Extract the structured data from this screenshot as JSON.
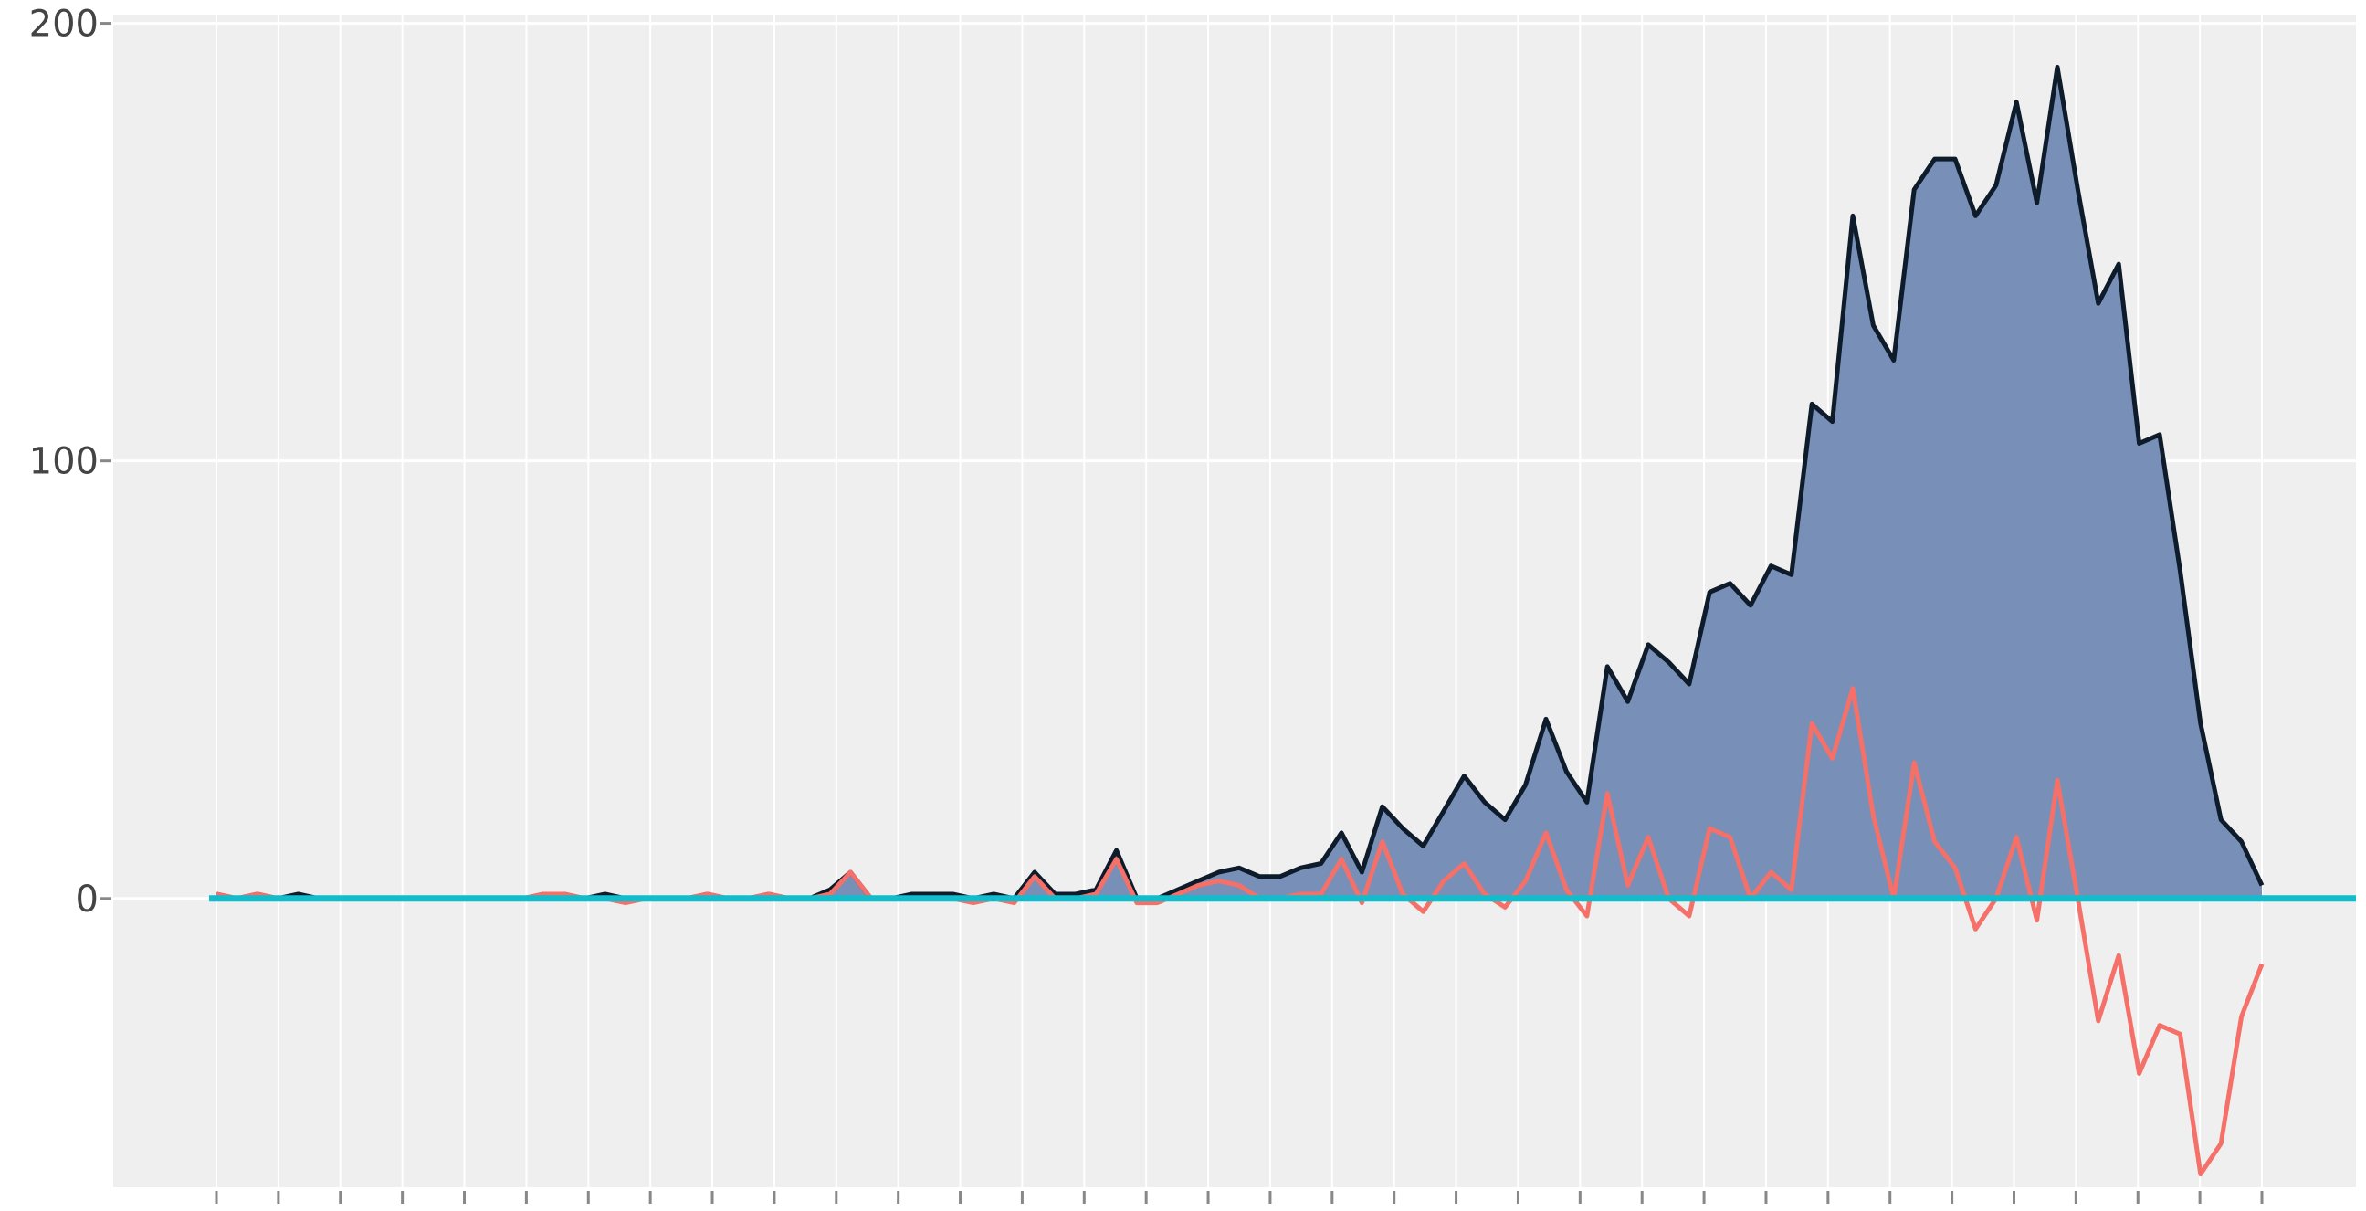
{
  "chart_data": {
    "type": "area",
    "title": "",
    "xlabel": "",
    "ylabel": "",
    "ylim": [
      -66,
      202
    ],
    "yticks": [
      0,
      100,
      200
    ],
    "x_tick_count": 34,
    "grid": true,
    "legend": "none",
    "colors": {
      "background": "#efefef",
      "grid": "#ffffff",
      "area_fill": "#7890b7",
      "area_line": "#0d1b2a",
      "line": "#f47068",
      "zero_line": "#12bccb",
      "tick_text": "#444444",
      "tick_mark": "#888888"
    },
    "series": [
      {
        "values": [
          1,
          0,
          1,
          0,
          1,
          0,
          0,
          0,
          0,
          0,
          0,
          0,
          0,
          0,
          0,
          0,
          1,
          1,
          0,
          1,
          0,
          0,
          0,
          0,
          1,
          0,
          0,
          1,
          0,
          0,
          2,
          6,
          0,
          0,
          1,
          1,
          1,
          0,
          1,
          0,
          6,
          1,
          1,
          2,
          11,
          0,
          0,
          2,
          4,
          6,
          7,
          5,
          5,
          7,
          8,
          15,
          6,
          21,
          16,
          12,
          20,
          28,
          22,
          18,
          26,
          41,
          29,
          22,
          53,
          45,
          58,
          54,
          49,
          70,
          72,
          67,
          76,
          74,
          113,
          109,
          156,
          131,
          123,
          162,
          169,
          169,
          156,
          163,
          182,
          159,
          190,
          162,
          136,
          145,
          104,
          106,
          75,
          40,
          18,
          13,
          3
        ]
      },
      {
        "values": [
          1,
          0,
          1,
          0,
          0,
          0,
          0,
          0,
          0,
          0,
          0,
          0,
          0,
          0,
          0,
          0,
          1,
          1,
          0,
          0,
          -1,
          0,
          0,
          0,
          1,
          0,
          0,
          1,
          0,
          0,
          1,
          6,
          0,
          0,
          0,
          0,
          0,
          -1,
          0,
          -1,
          5,
          0,
          0,
          1,
          9,
          -1,
          -1,
          1,
          3,
          4,
          3,
          0,
          0,
          1,
          1,
          9,
          -1,
          13,
          1,
          -3,
          4,
          8,
          1,
          -2,
          4,
          15,
          2,
          -4,
          24,
          3,
          14,
          0,
          -4,
          16,
          14,
          0,
          6,
          2,
          40,
          32,
          48,
          19,
          0,
          31,
          13,
          7,
          -7,
          0,
          14,
          -5,
          27,
          0,
          -28,
          -13,
          -40,
          -29,
          -31,
          -63,
          -56,
          -27,
          -15
        ]
      }
    ]
  }
}
